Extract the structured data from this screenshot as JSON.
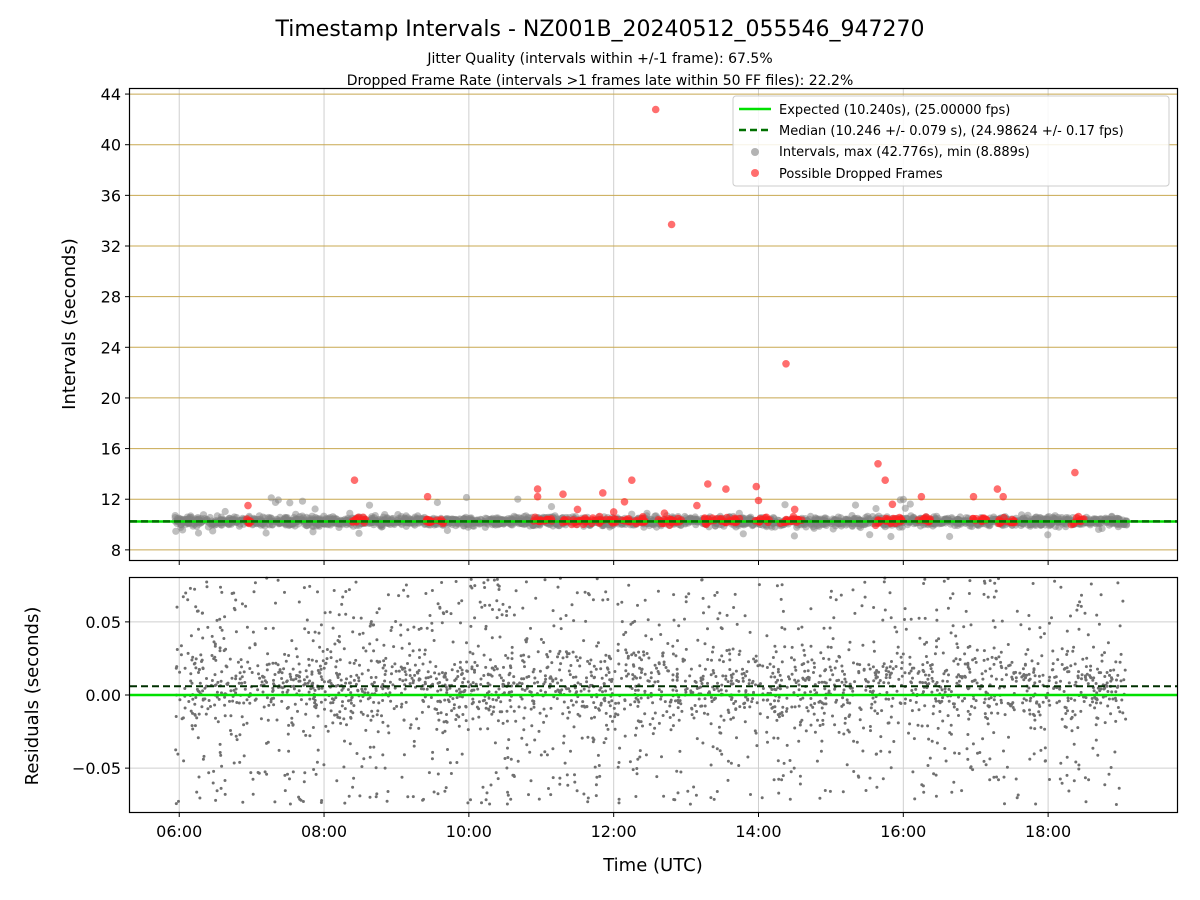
{
  "chart_data": {
    "type": "scatter",
    "title": "Timestamp Intervals - NZ001B_20240512_055546_947270",
    "subtitle_lines": [
      "Jitter Quality (intervals within +/-1 frame): 67.5%",
      "Dropped Frame Rate (intervals >1 frames late within 50 FF files): 22.2%"
    ],
    "xlabel": "Time (UTC)",
    "x_axis": {
      "unit": "hours",
      "range": [
        5.32,
        19.78
      ],
      "ticks": [
        6,
        8,
        10,
        12,
        14,
        16,
        18
      ],
      "tick_labels": [
        "06:00",
        "08:00",
        "10:00",
        "12:00",
        "14:00",
        "16:00",
        "18:00"
      ]
    },
    "data_x_range": [
      5.93,
      19.1
    ],
    "top_panel": {
      "ylabel": "Intervals (seconds)",
      "ylim": [
        7.2,
        44.4
      ],
      "yticks": [
        8,
        12,
        16,
        20,
        24,
        28,
        32,
        36,
        40,
        44
      ],
      "grid": true,
      "horizontal_grid_color": "#c8a850",
      "vertical_grid_color": "#cfcfcf",
      "expected": 10.24,
      "median": 10.246,
      "legend_position": "top-right",
      "legend": [
        "Expected (10.240s), (25.00000 fps)",
        "Median (10.246 +/- 0.079 s), (24.98624 +/- 0.17 fps)",
        "Intervals, max (42.776s), min (8.889s)",
        "Possible Dropped Frames"
      ],
      "series": {
        "expected_color": "#00e000",
        "median_color": "#007000",
        "intervals_color": "#808080",
        "dropped_color": "#ff2020"
      },
      "dropped_outliers": [
        {
          "x": 12.58,
          "y": 42.78
        },
        {
          "x": 12.8,
          "y": 33.7
        },
        {
          "x": 14.38,
          "y": 22.7
        },
        {
          "x": 15.65,
          "y": 14.8
        },
        {
          "x": 18.37,
          "y": 14.1
        },
        {
          "x": 8.42,
          "y": 13.5
        },
        {
          "x": 12.25,
          "y": 13.5
        },
        {
          "x": 15.75,
          "y": 13.5
        },
        {
          "x": 13.3,
          "y": 13.2
        },
        {
          "x": 13.97,
          "y": 13.0
        },
        {
          "x": 10.95,
          "y": 12.8
        },
        {
          "x": 13.55,
          "y": 12.8
        },
        {
          "x": 17.3,
          "y": 12.8
        },
        {
          "x": 11.85,
          "y": 12.5
        },
        {
          "x": 11.3,
          "y": 12.4
        },
        {
          "x": 9.43,
          "y": 12.2
        },
        {
          "x": 10.95,
          "y": 12.2
        },
        {
          "x": 16.25,
          "y": 12.2
        },
        {
          "x": 16.97,
          "y": 12.2
        },
        {
          "x": 17.38,
          "y": 12.2
        },
        {
          "x": 14.0,
          "y": 11.9
        },
        {
          "x": 12.15,
          "y": 11.8
        },
        {
          "x": 15.85,
          "y": 11.6
        },
        {
          "x": 6.95,
          "y": 11.5
        },
        {
          "x": 12.0,
          "y": 11.0
        },
        {
          "x": 11.5,
          "y": 11.2
        },
        {
          "x": 14.5,
          "y": 11.2
        },
        {
          "x": 12.7,
          "y": 10.9
        },
        {
          "x": 13.15,
          "y": 11.5
        }
      ],
      "dropped_clusters": [
        {
          "from": 6.93,
          "to": 7.0
        },
        {
          "from": 8.38,
          "to": 8.6
        },
        {
          "from": 9.38,
          "to": 9.65
        },
        {
          "from": 10.88,
          "to": 11.15
        },
        {
          "from": 11.28,
          "to": 11.75
        },
        {
          "from": 11.8,
          "to": 12.05
        },
        {
          "from": 12.1,
          "to": 12.45
        },
        {
          "from": 12.6,
          "to": 12.95
        },
        {
          "from": 13.25,
          "to": 13.75
        },
        {
          "from": 13.95,
          "to": 14.15
        },
        {
          "from": 14.3,
          "to": 14.6
        },
        {
          "from": 15.6,
          "to": 16.0
        },
        {
          "from": 16.2,
          "to": 16.4
        },
        {
          "from": 16.95,
          "to": 17.15
        },
        {
          "from": 17.3,
          "to": 17.55
        },
        {
          "from": 18.32,
          "to": 18.5
        }
      ]
    },
    "bottom_panel": {
      "ylabel": "Residuals (seconds)",
      "ylim": [
        -0.08,
        0.08
      ],
      "yticks": [
        -0.05,
        0.0,
        0.05
      ],
      "ytick_labels": [
        "−0.05",
        "0.00",
        "0.05"
      ],
      "grid": true,
      "expected_residual": 0.0,
      "median_residual": 0.006,
      "points_color": "#707070"
    }
  }
}
